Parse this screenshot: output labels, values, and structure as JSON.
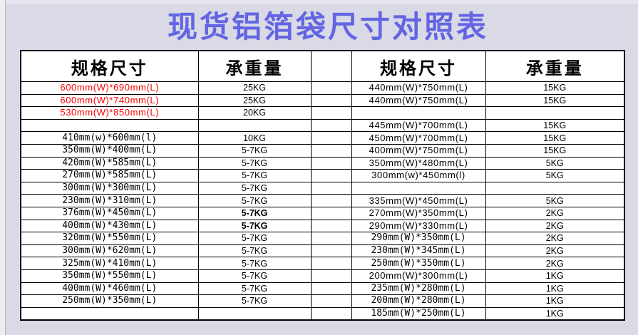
{
  "page": {
    "title": "现货铝箔袋尺寸对照表",
    "title_color": "#6365e3",
    "background_color": "#d9dae5",
    "red_row_color": "#fe0000",
    "border_color": "#000000"
  },
  "table": {
    "left": {
      "spec_header": "规格尺寸",
      "weight_header": "承重量",
      "rows": [
        {
          "spec": "600mm(W)*690mm(L)",
          "weight": "25KG",
          "red": true,
          "font": "sans",
          "bold_weight": false
        },
        {
          "spec": "600mm(W)*740mm(L)",
          "weight": "25KG",
          "red": true,
          "font": "sans",
          "bold_weight": false
        },
        {
          "spec": "530mm(W)*850mm(L)",
          "weight": "20KG",
          "red": true,
          "font": "sans",
          "bold_weight": false
        },
        {
          "spec": "",
          "weight": "",
          "red": false,
          "font": "sans",
          "bold_weight": false
        },
        {
          "spec": "410mm(w)*600mm(l)",
          "weight": "10KG",
          "red": false,
          "font": "mono",
          "bold_weight": false
        },
        {
          "spec": "350mm(W)*400mm(L)",
          "weight": "5-7KG",
          "red": false,
          "font": "mono",
          "bold_weight": false
        },
        {
          "spec": "420mm(W)*585mm(L)",
          "weight": "5-7KG",
          "red": false,
          "font": "mono",
          "bold_weight": false
        },
        {
          "spec": "270mm(W)*585mm(L)",
          "weight": "5-7KG",
          "red": false,
          "font": "mono",
          "bold_weight": false
        },
        {
          "spec": "300mm(W)*300mm(L)",
          "weight": "5-7KG",
          "red": false,
          "font": "mono",
          "bold_weight": false
        },
        {
          "spec": "230mm(W)*310mm(L)",
          "weight": "5-7KG",
          "red": false,
          "font": "mono",
          "bold_weight": false
        },
        {
          "spec": "376mm(W)*450mm(L)",
          "weight": "5-7KG",
          "red": false,
          "font": "mono",
          "bold_weight": true
        },
        {
          "spec": "400mm(W)*430mm(L)",
          "weight": "5-7KG",
          "red": false,
          "font": "mono",
          "bold_weight": true
        },
        {
          "spec": "320mm(W)*550mm(L)",
          "weight": "5-7KG",
          "red": false,
          "font": "mono",
          "bold_weight": false
        },
        {
          "spec": "300mm(W)*620mm(L)",
          "weight": "5-7KG",
          "red": false,
          "font": "mono",
          "bold_weight": false
        },
        {
          "spec": "325mm(W)*410mm(L)",
          "weight": "5-7KG",
          "red": false,
          "font": "mono",
          "bold_weight": false
        },
        {
          "spec": "350mm(W)*550mm(L)",
          "weight": "5-7KG",
          "red": false,
          "font": "mono",
          "bold_weight": false
        },
        {
          "spec": "400mm(W)*460mm(L)",
          "weight": "5-7KG",
          "red": false,
          "font": "mono",
          "bold_weight": false
        },
        {
          "spec": "250mm(W)*350mm(L)",
          "weight": "5-7KG",
          "red": false,
          "font": "mono",
          "bold_weight": false
        },
        {
          "spec": "",
          "weight": "",
          "red": false,
          "font": "sans",
          "bold_weight": false
        }
      ]
    },
    "right": {
      "spec_header": "规格尺寸",
      "weight_header": "承重量",
      "rows": [
        {
          "spec": "440mm(W)*750mm(L)",
          "weight": "15KG",
          "red": false,
          "font": "sans",
          "bold_weight": false
        },
        {
          "spec": "440mm(W)*750mm(L)",
          "weight": "15KG",
          "red": false,
          "font": "sans",
          "bold_weight": false
        },
        {
          "spec": "",
          "weight": "",
          "red": false,
          "font": "sans",
          "bold_weight": false
        },
        {
          "spec": "445mm(W)*700mm(L)",
          "weight": "15KG",
          "red": false,
          "font": "sans",
          "bold_weight": false
        },
        {
          "spec": "450mm(W)*700mm(L)",
          "weight": "15KG",
          "red": false,
          "font": "sans",
          "bold_weight": false
        },
        {
          "spec": "400mm(W)*750mm(L)",
          "weight": "15KG",
          "red": false,
          "font": "sans",
          "bold_weight": false
        },
        {
          "spec": "350mm(W)*480mm(L)",
          "weight": "5KG",
          "red": false,
          "font": "sans",
          "bold_weight": false
        },
        {
          "spec": "300mm(w)*450mm(l)",
          "weight": "5KG",
          "red": false,
          "font": "sans",
          "bold_weight": false
        },
        {
          "spec": "",
          "weight": "",
          "red": false,
          "font": "sans",
          "bold_weight": false
        },
        {
          "spec": "335mm(W)*450mm(L)",
          "weight": "5KG",
          "red": false,
          "font": "sans",
          "bold_weight": false
        },
        {
          "spec": "270mm(W)*350mm(L)",
          "weight": "2KG",
          "red": false,
          "font": "sans",
          "bold_weight": false
        },
        {
          "spec": "290mm(W)*330mm(L)",
          "weight": "2KG",
          "red": false,
          "font": "sans",
          "bold_weight": false
        },
        {
          "spec": "290mm(W)*350mm(L)",
          "weight": "2KG",
          "red": false,
          "font": "mono",
          "bold_weight": false
        },
        {
          "spec": "230mm(W)*345mm(L)",
          "weight": "2KG",
          "red": false,
          "font": "mono",
          "bold_weight": false
        },
        {
          "spec": "250mm(W)*350mm(L)",
          "weight": "2KG",
          "red": false,
          "font": "mono",
          "bold_weight": false
        },
        {
          "spec": "200mm(W)*300mm(L)",
          "weight": "1KG",
          "red": false,
          "font": "sans",
          "bold_weight": false
        },
        {
          "spec": "235mm(W)*280mm(L)",
          "weight": "1KG",
          "red": false,
          "font": "mono",
          "bold_weight": false
        },
        {
          "spec": "200mm(W)*280mm(L)",
          "weight": "1KG",
          "red": false,
          "font": "mono",
          "bold_weight": false
        },
        {
          "spec": "185mm(W)*250mm(L)",
          "weight": "1KG",
          "red": false,
          "font": "mono",
          "bold_weight": false
        }
      ]
    }
  }
}
